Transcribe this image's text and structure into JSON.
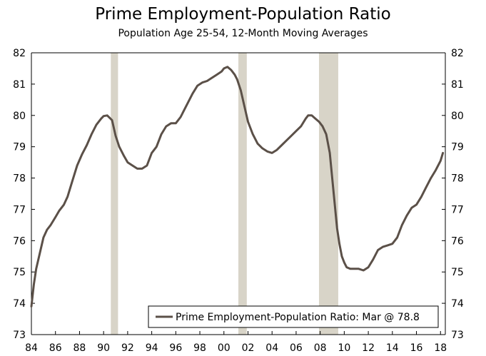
{
  "chart_data": {
    "type": "line",
    "title": "Prime Employment-Population Ratio",
    "subtitle": "Population Age 25-54, 12-Month Moving Averages",
    "xlabel": "",
    "ylabel": "",
    "xlim": [
      1984.0,
      2018.4
    ],
    "ylim": [
      73,
      82
    ],
    "y_ticks": [
      73,
      74,
      75,
      76,
      77,
      78,
      79,
      80,
      81,
      82
    ],
    "x_ticks": [
      1984,
      1986,
      1988,
      1990,
      1992,
      1994,
      1996,
      1998,
      2000,
      2002,
      2004,
      2006,
      2008,
      2010,
      2012,
      2014,
      2016,
      2018
    ],
    "x_tick_labels": [
      "84",
      "86",
      "88",
      "90",
      "92",
      "94",
      "96",
      "98",
      "00",
      "02",
      "04",
      "06",
      "08",
      "10",
      "12",
      "14",
      "16",
      "18"
    ],
    "y_axis_right": true,
    "grid": false,
    "recessions": [
      {
        "start": 1990.6,
        "end": 1991.2
      },
      {
        "start": 2001.2,
        "end": 2001.9
      },
      {
        "start": 2007.9,
        "end": 2009.5
      }
    ],
    "legend": {
      "position": "bottom-right",
      "entries": [
        "Prime Employment-Population Ratio: Mar @ 78.8"
      ]
    },
    "colors": {
      "series": "#5b5048",
      "recession": "#d8d4c8",
      "axis": "#000000"
    },
    "series": [
      {
        "name": "Prime Employment-Population Ratio",
        "x": [
          1984.0,
          1984.2,
          1984.4,
          1984.7,
          1985.0,
          1985.3,
          1985.6,
          1986.0,
          1986.3,
          1986.7,
          1987.0,
          1987.4,
          1987.8,
          1988.2,
          1988.6,
          1989.0,
          1989.4,
          1989.8,
          1990.0,
          1990.3,
          1990.7,
          1991.0,
          1991.3,
          1991.7,
          1992.0,
          1992.4,
          1992.8,
          1993.2,
          1993.6,
          1994.0,
          1994.4,
          1994.8,
          1995.2,
          1995.6,
          1996.0,
          1996.4,
          1996.8,
          1997.0,
          1997.4,
          1997.8,
          1998.2,
          1998.6,
          1999.0,
          1999.4,
          1999.8,
          2000.0,
          2000.3,
          2000.6,
          2000.9,
          2001.1,
          2001.4,
          2001.7,
          2002.0,
          2002.4,
          2002.8,
          2003.2,
          2003.6,
          2004.0,
          2004.4,
          2004.8,
          2005.2,
          2005.6,
          2006.0,
          2006.4,
          2006.8,
          2007.0,
          2007.3,
          2007.6,
          2007.9,
          2008.2,
          2008.5,
          2008.8,
          2009.0,
          2009.2,
          2009.4,
          2009.6,
          2009.8,
          2010.0,
          2010.2,
          2010.5,
          2010.8,
          2011.2,
          2011.6,
          2012.0,
          2012.4,
          2012.8,
          2013.2,
          2013.6,
          2014.0,
          2014.4,
          2014.8,
          2015.2,
          2015.6,
          2016.0,
          2016.4,
          2016.8,
          2017.2,
          2017.6,
          2018.0,
          2018.2
        ],
        "values": [
          73.9,
          74.6,
          75.1,
          75.6,
          76.1,
          76.35,
          76.5,
          76.75,
          76.95,
          77.15,
          77.4,
          77.9,
          78.4,
          78.75,
          79.05,
          79.4,
          79.7,
          79.9,
          79.98,
          80.0,
          79.85,
          79.35,
          79.0,
          78.7,
          78.5,
          78.4,
          78.3,
          78.3,
          78.4,
          78.8,
          79.0,
          79.4,
          79.65,
          79.75,
          79.75,
          79.95,
          80.25,
          80.4,
          80.7,
          80.95,
          81.05,
          81.1,
          81.2,
          81.3,
          81.4,
          81.5,
          81.55,
          81.45,
          81.3,
          81.15,
          80.8,
          80.3,
          79.8,
          79.4,
          79.1,
          78.95,
          78.85,
          78.8,
          78.9,
          79.05,
          79.2,
          79.35,
          79.5,
          79.65,
          79.9,
          80.0,
          80.0,
          79.9,
          79.8,
          79.65,
          79.4,
          78.8,
          78.0,
          77.2,
          76.4,
          75.9,
          75.5,
          75.3,
          75.15,
          75.1,
          75.1,
          75.1,
          75.05,
          75.15,
          75.4,
          75.7,
          75.8,
          75.85,
          75.9,
          76.1,
          76.5,
          76.8,
          77.05,
          77.15,
          77.4,
          77.7,
          78.0,
          78.25,
          78.55,
          78.8
        ]
      }
    ]
  }
}
